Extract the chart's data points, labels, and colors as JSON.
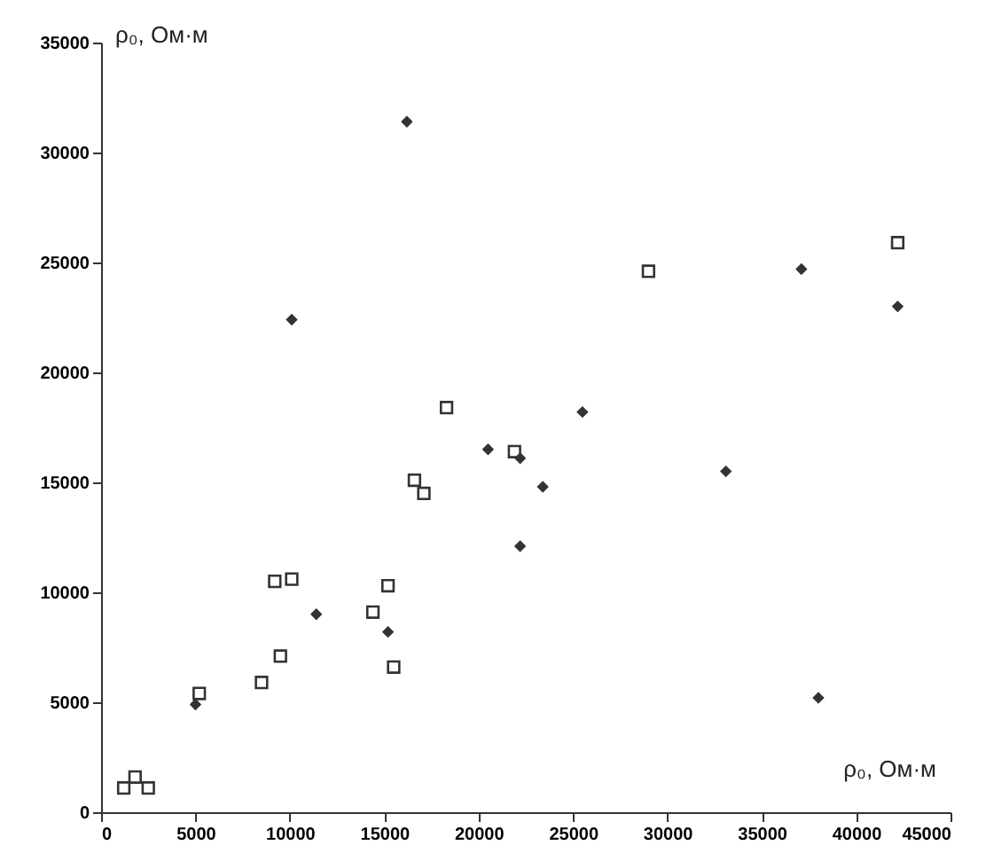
{
  "chart_data": {
    "type": "scatter",
    "xlabel": "ρ₀, Ом·м",
    "ylabel": "ρ₀, Ом·м",
    "xlim": [
      0,
      45000
    ],
    "ylim": [
      0,
      35000
    ],
    "xticks": [
      0,
      5000,
      10000,
      15000,
      20000,
      25000,
      30000,
      35000,
      40000,
      45000
    ],
    "yticks": [
      0,
      5000,
      10000,
      15000,
      20000,
      25000,
      30000,
      35000
    ],
    "grid": false,
    "series": [
      {
        "color": "#333333",
        "marker": "square",
        "x": [
          1200,
          1800,
          2500,
          5200,
          8500,
          9500,
          9200,
          10100,
          14400,
          15200,
          15500,
          16600,
          17100,
          18300,
          21900,
          29000,
          42200
        ],
        "values": [
          1100,
          1600,
          1100,
          5400,
          5900,
          7100,
          10500,
          10600,
          9100,
          10300,
          6600,
          15100,
          14500,
          18400,
          16400,
          24600,
          25900
        ]
      },
      {
        "color": "#333333",
        "marker": "diamond",
        "x": [
          5000,
          11400,
          15200,
          20500,
          22200,
          22200,
          25500,
          23400,
          33100,
          38000,
          37100,
          42200,
          16200,
          10100
        ],
        "values": [
          4900,
          9000,
          8200,
          16500,
          16100,
          12100,
          18200,
          14800,
          15500,
          5200,
          24700,
          23000,
          31400,
          22400
        ]
      }
    ]
  }
}
